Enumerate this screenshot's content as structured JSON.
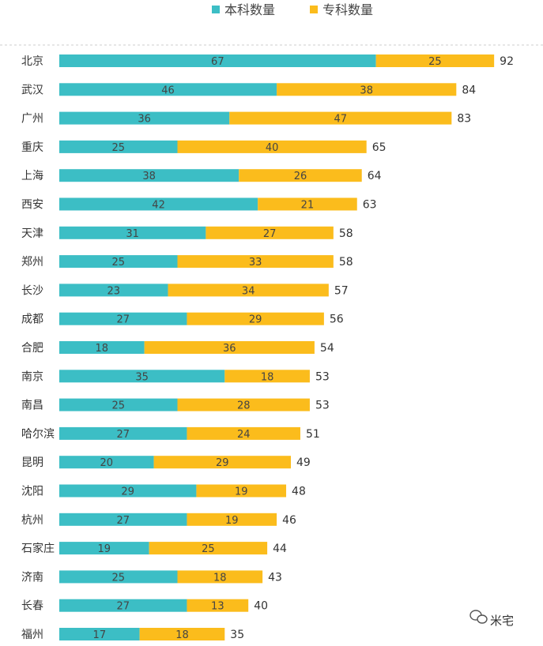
{
  "chart_data": {
    "type": "bar",
    "orientation": "horizontal",
    "stacked": true,
    "categories": [
      "北京",
      "武汉",
      "广州",
      "重庆",
      "上海",
      "西安",
      "天津",
      "郑州",
      "长沙",
      "成都",
      "合肥",
      "南京",
      "南昌",
      "哈尔滨",
      "昆明",
      "沈阳",
      "杭州",
      "石家庄",
      "济南",
      "长春",
      "福州"
    ],
    "series": [
      {
        "name": "本科数量",
        "color": "#3cbec5",
        "values": [
          67,
          46,
          36,
          25,
          38,
          42,
          31,
          25,
          23,
          27,
          18,
          35,
          25,
          27,
          20,
          29,
          27,
          19,
          25,
          27,
          17
        ]
      },
      {
        "name": "专科数量",
        "color": "#fbbc1c",
        "values": [
          25,
          38,
          47,
          40,
          26,
          21,
          27,
          33,
          34,
          29,
          36,
          18,
          28,
          24,
          29,
          19,
          19,
          25,
          18,
          13,
          18
        ]
      }
    ],
    "totals": [
      92,
      84,
      83,
      65,
      64,
      63,
      58,
      58,
      57,
      56,
      54,
      53,
      53,
      51,
      49,
      48,
      46,
      44,
      43,
      40,
      35
    ],
    "title": "",
    "xlabel": "",
    "ylabel": "",
    "xlim": [
      0,
      100
    ],
    "legend_position": "top-center",
    "grid": false
  },
  "watermark": {
    "icon": "wechat-icon",
    "text": "米宅"
  }
}
